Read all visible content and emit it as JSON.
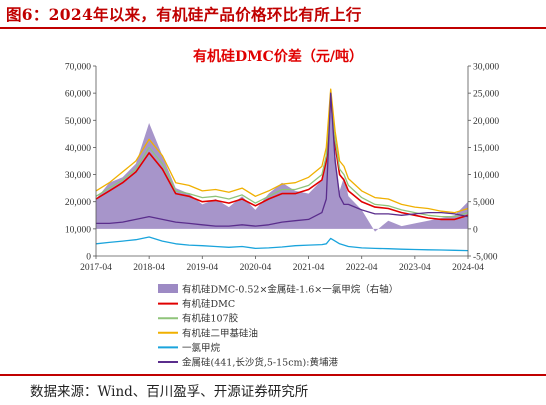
{
  "figure": {
    "title": "图6：2024年以来，有机硅产品价格环比有所上行",
    "source": "数据来源：Wind、百川盈孚、开源证券研究所"
  },
  "chart_data": {
    "type": "line",
    "title": "有机硅DMC价差（元/吨）",
    "x": [
      "2017-04",
      "2017-07",
      "2017-10",
      "2018-01",
      "2018-04",
      "2018-07",
      "2018-10",
      "2019-01",
      "2019-04",
      "2019-07",
      "2019-10",
      "2020-01",
      "2020-04",
      "2020-07",
      "2020-10",
      "2021-01",
      "2021-04",
      "2021-07",
      "2021-08",
      "2021-09",
      "2021-10",
      "2021-11",
      "2021-12",
      "2022-01",
      "2022-04",
      "2022-07",
      "2022-10",
      "2023-01",
      "2023-04",
      "2023-07",
      "2023-10",
      "2024-01",
      "2024-04"
    ],
    "x_ticks": [
      "2017-04",
      "2018-04",
      "2019-04",
      "2020-04",
      "2021-04",
      "2022-04",
      "2023-04",
      "2024-04"
    ],
    "y_left": {
      "ylim": [
        0,
        70000
      ],
      "ticks": [
        "0",
        "10,000",
        "20,000",
        "30,000",
        "40,000",
        "50,000",
        "60,000",
        "70,000"
      ]
    },
    "y_right": {
      "ylim": [
        -5000,
        30000
      ],
      "ticks": [
        "-5,000",
        "0",
        "5,000",
        "10,000",
        "15,000",
        "20,000",
        "25,000",
        "30,000"
      ]
    },
    "grid": false,
    "legend_position": "bottom",
    "series": [
      {
        "name": "有机硅DMC-0.52×金属硅-1.6×一氯甲烷（右轴）",
        "type": "area",
        "axis": "right",
        "color": "#9d8ac4",
        "values": [
          5500,
          8500,
          9500,
          12000,
          19500,
          13500,
          7500,
          6500,
          4500,
          5500,
          4000,
          6000,
          3500,
          6500,
          8500,
          7000,
          6500,
          9000,
          13000,
          24500,
          14000,
          7000,
          9500,
          6000,
          3500,
          -500,
          1500,
          500,
          1000,
          1500,
          2000,
          2500,
          5000
        ]
      },
      {
        "name": "有机硅DMC",
        "type": "line",
        "axis": "left",
        "color": "#e00000",
        "values": [
          21000,
          24000,
          27000,
          31000,
          38000,
          32000,
          23000,
          22000,
          20000,
          20500,
          19500,
          21000,
          18500,
          21000,
          23000,
          23000,
          24500,
          28000,
          35000,
          59000,
          41000,
          30000,
          28000,
          24000,
          20000,
          18000,
          17500,
          16000,
          15000,
          14000,
          13500,
          13500,
          15000
        ]
      },
      {
        "name": "有机硅107胶",
        "type": "line",
        "axis": "left",
        "color": "#8fc47a",
        "values": [
          22000,
          25000,
          28000,
          32000,
          40000,
          34000,
          24000,
          23000,
          21500,
          22000,
          21000,
          22500,
          19500,
          22000,
          24500,
          24500,
          26000,
          30000,
          37000,
          60500,
          43000,
          32000,
          30000,
          26000,
          21500,
          19000,
          18500,
          17000,
          16000,
          15000,
          14500,
          14500,
          16000
        ]
      },
      {
        "name": "有机硅二甲基硅油",
        "type": "line",
        "axis": "left",
        "color": "#f0b000",
        "values": [
          24000,
          27000,
          31000,
          35000,
          43000,
          37000,
          27000,
          26000,
          24000,
          24500,
          23500,
          25000,
          22000,
          24000,
          26500,
          27000,
          29000,
          33000,
          40000,
          61500,
          46000,
          35000,
          33000,
          28500,
          24000,
          21500,
          21000,
          19000,
          18000,
          17500,
          16500,
          16000,
          17500
        ]
      },
      {
        "name": "一氯甲烷",
        "type": "line",
        "axis": "left",
        "color": "#1aa4dc",
        "values": [
          4500,
          5000,
          5500,
          6000,
          7000,
          5500,
          4500,
          4000,
          3800,
          3500,
          3200,
          3500,
          2800,
          3000,
          3300,
          3800,
          4000,
          4200,
          4500,
          6500,
          5500,
          4500,
          4000,
          3500,
          3000,
          2800,
          2700,
          2500,
          2400,
          2300,
          2200,
          2100,
          2000
        ]
      },
      {
        "name": "金属硅(441,长沙货,5-15cm):黄埔港",
        "type": "line",
        "axis": "left",
        "color": "#5a2d8c",
        "values": [
          12000,
          12000,
          12500,
          13500,
          14500,
          13500,
          12500,
          12000,
          11500,
          11000,
          11000,
          11500,
          11000,
          11500,
          12500,
          13000,
          13500,
          16000,
          21000,
          60000,
          35000,
          22000,
          19000,
          19000,
          17000,
          15500,
          15500,
          15000,
          15500,
          16000,
          16000,
          15500,
          14500
        ]
      }
    ]
  }
}
